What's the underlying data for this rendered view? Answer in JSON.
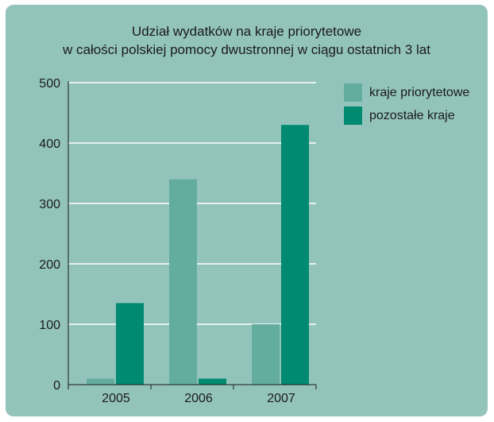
{
  "chart_data": {
    "type": "bar",
    "title_lines": [
      "Udział wydatków na kraje priorytetowe",
      "w całości polskiej pomocy dwustronnej w ciągu ostatnich 3 lat"
    ],
    "categories": [
      "2005",
      "2006",
      "2007"
    ],
    "series": [
      {
        "name": "kraje priorytetowe",
        "values": [
          10,
          340,
          100
        ],
        "color": "#63ad9f"
      },
      {
        "name": "pozostałe kraje",
        "values": [
          135,
          10,
          430
        ],
        "color": "#008a72"
      }
    ],
    "ylim": [
      0,
      500
    ],
    "yticks": [
      0,
      100,
      200,
      300,
      400,
      500
    ],
    "grid": true,
    "legend_position": "top-right",
    "background": "#93c4bc"
  }
}
